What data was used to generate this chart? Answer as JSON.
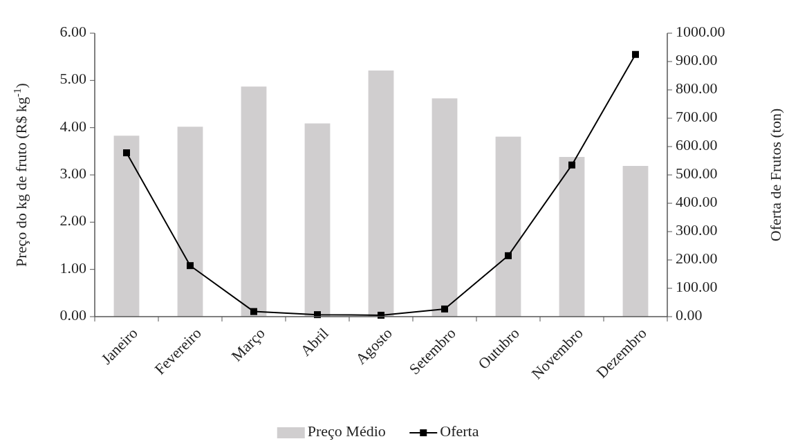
{
  "chart_data": {
    "type": "bar",
    "ylabel": "Preço do kg de fruto (R$ kg$^{-1}$)",
    "y2label": "Oferta de Frutos (ton)",
    "categories": [
      "Janeiro",
      "Fevereiro",
      "Março",
      "Abril",
      "Agosto",
      "Setembro",
      "Outubro",
      "Novembro",
      "Dezembro"
    ],
    "series": [
      {
        "name": "Preço Médio",
        "color": "#d0cecf",
        "values": [
          3.83,
          4.02,
          4.87,
          4.09,
          5.21,
          4.62,
          3.81,
          3.38,
          3.19
        ]
      },
      {
        "name": "Oferta",
        "type": "line",
        "axis": "y2",
        "color": "#000000",
        "marker": "square",
        "values": [
          578,
          180,
          18,
          7,
          5,
          27,
          215,
          535,
          925
        ]
      }
    ],
    "ylim": [
      0,
      6
    ],
    "yticks": [
      {
        "value": 0,
        "label": "0.00"
      },
      {
        "value": 1,
        "label": "1.00"
      },
      {
        "value": 2,
        "label": "2.00"
      },
      {
        "value": 3,
        "label": "3.00"
      },
      {
        "value": 4,
        "label": "4.00"
      },
      {
        "value": 5,
        "label": "5.00"
      },
      {
        "value": 6,
        "label": "6.00"
      }
    ],
    "y2lim": [
      0,
      1000
    ],
    "y2ticks": [
      {
        "value": 0,
        "label": "0.00"
      },
      {
        "value": 100,
        "label": "100.00"
      },
      {
        "value": 200,
        "label": "200.00"
      },
      {
        "value": 300,
        "label": "300.00"
      },
      {
        "value": 400,
        "label": "400.00"
      },
      {
        "value": 500,
        "label": "500.00"
      },
      {
        "value": 600,
        "label": "600.00"
      },
      {
        "value": 700,
        "label": "700.00"
      },
      {
        "value": 800,
        "label": "800.00"
      },
      {
        "value": 900,
        "label": "900.00"
      },
      {
        "value": 1000,
        "label": "1000.00"
      }
    ],
    "grid": false,
    "legend": "bottom"
  }
}
